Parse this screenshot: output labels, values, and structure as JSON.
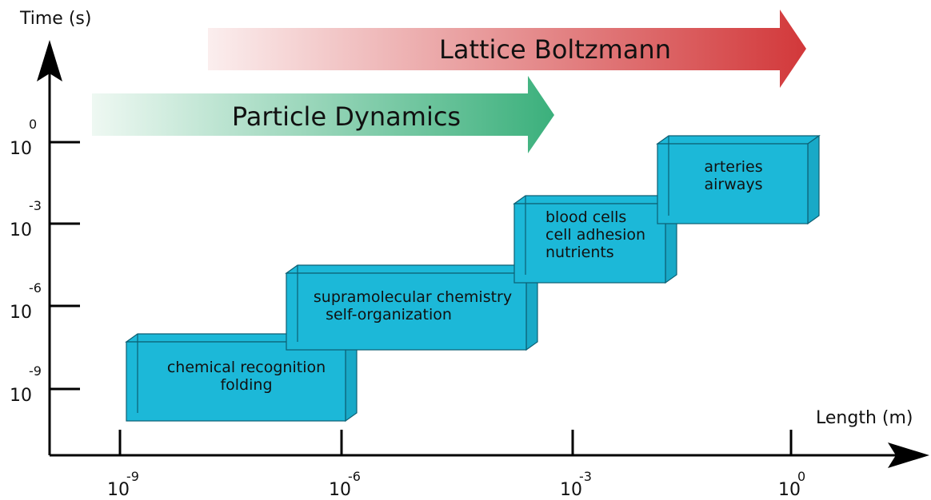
{
  "y_axis": {
    "label": "Time (s)",
    "ticks": [
      {
        "base": "10",
        "exponent": "0"
      },
      {
        "base": "10",
        "exponent": "-3"
      },
      {
        "base": "10",
        "exponent": "-6"
      },
      {
        "base": "10",
        "exponent": "-9"
      }
    ]
  },
  "x_axis": {
    "label": "Length (m)",
    "ticks": [
      {
        "base": "10",
        "exponent": "-9"
      },
      {
        "base": "10",
        "exponent": "-6"
      },
      {
        "base": "10",
        "exponent": "-3"
      },
      {
        "base": "10",
        "exponent": "0"
      }
    ]
  },
  "arrows": [
    {
      "label": "Lattice Boltzmann"
    },
    {
      "label": "Particle Dynamics"
    }
  ],
  "boxes": [
    {
      "lines": [
        "chemical recognition",
        "folding"
      ]
    },
    {
      "lines": [
        "supramolecular chemistry",
        "self-organization"
      ]
    },
    {
      "lines": [
        "blood cells",
        "cell adhesion",
        "nutrients"
      ]
    },
    {
      "lines": [
        "arteries",
        "airways"
      ]
    }
  ]
}
